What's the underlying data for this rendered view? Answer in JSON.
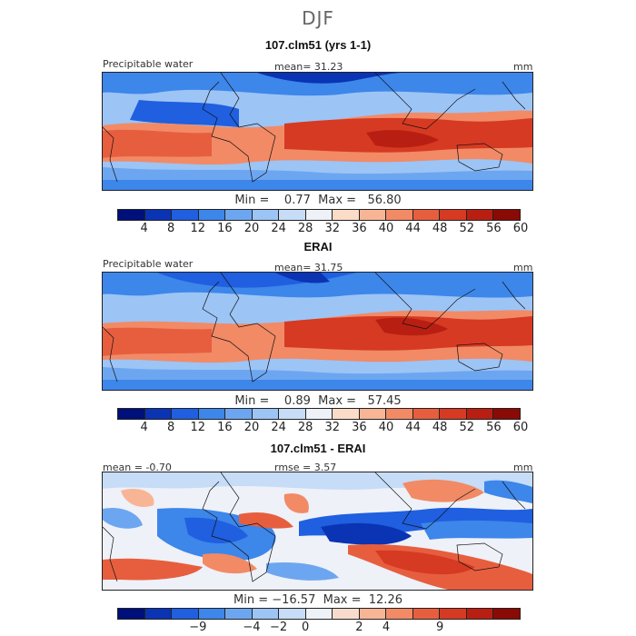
{
  "season": "DJF",
  "palette_abs": [
    "#00107a",
    "#0a34b4",
    "#1f5fe0",
    "#3d86ea",
    "#6da6f0",
    "#9cc4f5",
    "#c6dcf7",
    "#eef1f7",
    "#fbdcc8",
    "#f7b596",
    "#f28a66",
    "#e75e3f",
    "#d63a22",
    "#b81f12",
    "#8a0a05"
  ],
  "palette_diff": [
    "#00107a",
    "#0a34b4",
    "#1f5fe0",
    "#3d86ea",
    "#6da6f0",
    "#9cc4f5",
    "#c6dcf7",
    "#eef1f7",
    "#f7dccd",
    "#f7b596",
    "#f28a66",
    "#e75e3f",
    "#d63a22",
    "#b81f12",
    "#8a0a05"
  ],
  "panels": [
    {
      "title": "107.clm51 (yrs 1-1)",
      "left_label": "Precipitable water",
      "center_label": "mean=  31.23",
      "right_label": "mm",
      "min_max": "Min =    0.77  Max =   56.80",
      "ticks": [
        "4",
        "8",
        "12",
        "16",
        "20",
        "24",
        "28",
        "32",
        "36",
        "40",
        "44",
        "48",
        "52",
        "56",
        "60"
      ],
      "type": "abs"
    },
    {
      "title": "ERAI",
      "left_label": "Precipitable water",
      "center_label": "mean=  31.75",
      "right_label": "mm",
      "min_max": "Min =    0.89  Max =   57.45",
      "ticks": [
        "4",
        "8",
        "12",
        "16",
        "20",
        "24",
        "28",
        "32",
        "36",
        "40",
        "44",
        "48",
        "52",
        "56",
        "60"
      ],
      "type": "abs"
    },
    {
      "title": "107.clm51 - ERAI",
      "left_label": "mean =  -0.70",
      "center_label": "rmse =    3.57",
      "right_label": "mm",
      "min_max": "Min = −16.57  Max =  12.26",
      "ticks": [
        "−9",
        "−4",
        "−2",
        "0",
        "2",
        "4",
        "9"
      ],
      "type": "diff"
    }
  ]
}
